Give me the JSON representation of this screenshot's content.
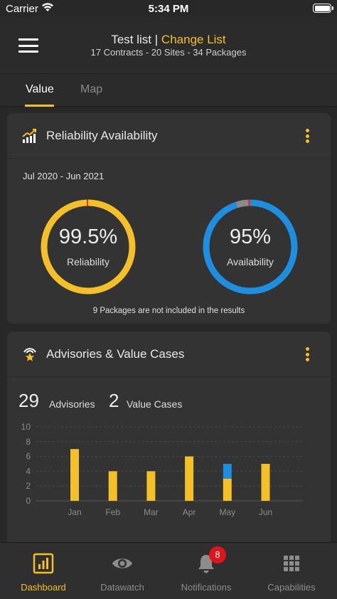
{
  "status_bar": {
    "carrier": "Carrier",
    "time": "5:34 PM"
  },
  "header": {
    "title": "Test list",
    "separator": "|",
    "change_list": "Change List",
    "subtitle": "17 Contracts - 20 Sites - 34 Packages"
  },
  "tabs": [
    {
      "label": "Value",
      "active": true
    },
    {
      "label": "Map",
      "active": false
    }
  ],
  "reliability_card": {
    "title": "Reliability Availability",
    "date_range": "Jul 2020 - Jun 2021",
    "reliability": {
      "value": "99.5%",
      "label": "Reliability",
      "percent": 99.5,
      "color": "#f5bf27",
      "gap_color": "#e0312b"
    },
    "availability": {
      "value": "95%",
      "label": "Availability",
      "percent": 95,
      "color": "#1e8fe0",
      "gap_color": "#8a8a8a",
      "marker_color": "#e0312b"
    },
    "note": "9 Packages are not included in the results"
  },
  "advisories_card": {
    "title": "Advisories & Value Cases",
    "advisories_count": "29",
    "advisories_label": "Advisories",
    "value_cases_count": "2",
    "value_cases_label": "Value Cases"
  },
  "chart_data": {
    "type": "bar",
    "categories": [
      "Jan",
      "Feb",
      "Mar",
      "Apr",
      "May",
      "Jun"
    ],
    "series": [
      {
        "color": "#f5bf27",
        "values": [
          7,
          4,
          4,
          6,
          3,
          5
        ]
      },
      {
        "color": "#1e8fe0",
        "values": [
          0,
          0,
          0,
          0,
          2,
          0
        ]
      }
    ],
    "stacked": true,
    "ylim": [
      0,
      10
    ],
    "yticks": [
      "0",
      "2",
      "4",
      "6",
      "8",
      "10"
    ],
    "grid": true
  },
  "bottom_nav": [
    {
      "label": "Dashboard",
      "icon": "dashboard-icon",
      "active": true
    },
    {
      "label": "Datawatch",
      "icon": "eye-icon",
      "active": false
    },
    {
      "label": "Notifications",
      "icon": "bell-icon",
      "active": false
    },
    {
      "label": "Capabilities",
      "icon": "grid-icon",
      "active": false
    }
  ],
  "notifications_badge": "8",
  "colors": {
    "accent": "#f5bf27",
    "blue": "#1e8fe0",
    "red": "#e0151b",
    "background": "#282828",
    "card": "#333333"
  }
}
